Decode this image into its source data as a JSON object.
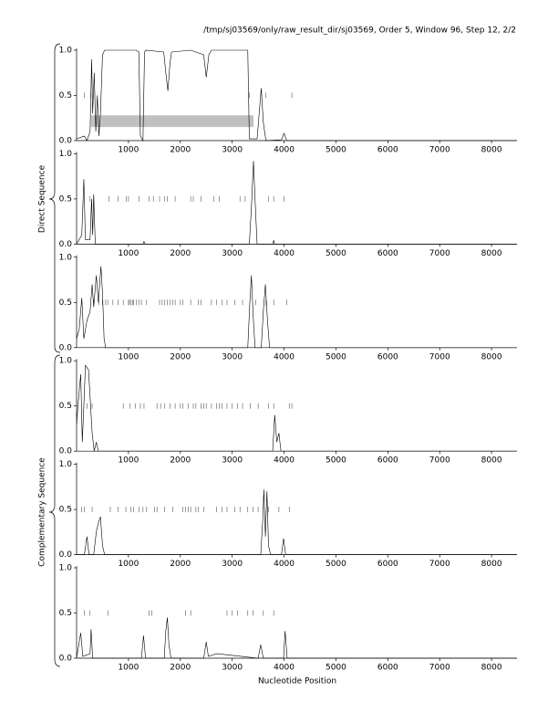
{
  "header": {
    "title": "/tmp/sj03569/only/raw_result_dir/sj03569, Order 5, Window 96, Step 12, 2/2"
  },
  "groups": [
    "Direct Sequence",
    "Complementary Sequence"
  ],
  "x_label": "Nucleotide Position",
  "chart_data": [
    {
      "type": "line",
      "color": "#000000",
      "x": [
        0,
        150,
        200,
        260,
        290,
        310,
        340,
        370,
        400,
        430,
        460,
        500,
        540,
        1150,
        1200,
        1230,
        1280,
        1310,
        1340,
        1680,
        1720,
        1760,
        1800,
        1830,
        2200,
        2450,
        2500,
        2550,
        2600,
        3300,
        3330,
        3480,
        3520,
        3560,
        3600,
        3650,
        3950,
        4000,
        4050,
        8490
      ],
      "values": [
        0.02,
        0.05,
        0,
        0.1,
        0.9,
        0.3,
        0.75,
        0.1,
        0.5,
        0.05,
        0.3,
        0.95,
        1,
        1,
        0.98,
        0.05,
        0,
        0.98,
        1,
        0.98,
        0.75,
        0.55,
        0.85,
        0.98,
        1,
        0.95,
        0.7,
        0.95,
        1,
        1,
        0.02,
        0.02,
        0.3,
        0.58,
        0.2,
        0,
        0.01,
        0.08,
        0,
        0
      ],
      "markers": [
        150,
        280,
        3330,
        3650,
        4150
      ],
      "marker_y": 0.5,
      "regions": [
        {
          "start": 280,
          "end": 3410,
          "low": 0.15,
          "high": 0.28
        }
      ],
      "region_color": "#c0c0c0",
      "xlim": [
        0,
        8490
      ],
      "ylim": [
        0,
        1
      ],
      "xticks": [
        1000,
        2000,
        3000,
        4000,
        5000,
        6000,
        7000,
        8000
      ],
      "yticks": [
        {
          "value": 0,
          "label": "0.0"
        },
        {
          "value": 0.5,
          "label": "0.5"
        },
        {
          "value": 1,
          "label": "1.0"
        }
      ]
    },
    {
      "type": "line",
      "color": "#000000",
      "x": [
        0,
        100,
        140,
        170,
        260,
        290,
        310,
        330,
        360,
        1280,
        1300,
        1320,
        3330,
        3370,
        3410,
        3440,
        3480,
        3780,
        3800,
        3820,
        8490
      ],
      "values": [
        0,
        0.1,
        0.72,
        0.05,
        0.05,
        0.5,
        0.1,
        0.55,
        0,
        0,
        0.03,
        0,
        0,
        0.4,
        0.92,
        0.5,
        0,
        0,
        0.04,
        0,
        0
      ],
      "markers": [
        260,
        330,
        620,
        800,
        960,
        1000,
        1200,
        1400,
        1480,
        1600,
        1700,
        1750,
        1900,
        2200,
        2250,
        2400,
        2650,
        2750,
        3150,
        3250,
        3700,
        3800,
        4000
      ],
      "marker_y": 0.5,
      "xlim": [
        0,
        8490
      ],
      "ylim": [
        0,
        1
      ],
      "xticks": [
        1000,
        2000,
        3000,
        4000,
        5000,
        6000,
        7000,
        8000
      ],
      "yticks": [
        {
          "value": 0,
          "label": "0.0"
        },
        {
          "value": 0.5,
          "label": "0.5"
        },
        {
          "value": 1,
          "label": "1.0"
        }
      ]
    },
    {
      "type": "line",
      "color": "#000000",
      "x": [
        0,
        50,
        100,
        140,
        200,
        260,
        300,
        330,
        380,
        420,
        470,
        500,
        530,
        560,
        3300,
        3340,
        3370,
        3400,
        3440,
        3560,
        3600,
        3640,
        3680,
        3720,
        8490
      ],
      "values": [
        0.1,
        0.2,
        0.55,
        0.1,
        0.3,
        0.4,
        0.7,
        0.45,
        0.8,
        0.5,
        0.9,
        0.6,
        0.1,
        0,
        0,
        0.5,
        0.8,
        0.4,
        0,
        0,
        0.4,
        0.7,
        0.3,
        0,
        0
      ],
      "markers": [
        330,
        430,
        500,
        560,
        600,
        700,
        800,
        900,
        1000,
        1020,
        1050,
        1080,
        1100,
        1150,
        1200,
        1250,
        1350,
        1600,
        1650,
        1700,
        1750,
        1800,
        1850,
        1900,
        2000,
        2050,
        2200,
        2350,
        2400,
        2600,
        2700,
        2800,
        2900,
        3050,
        3200,
        3450,
        3650,
        3800,
        4050
      ],
      "marker_y": 0.5,
      "xlim": [
        0,
        8490
      ],
      "ylim": [
        0,
        1
      ],
      "xticks": [
        1000,
        2000,
        3000,
        4000,
        5000,
        6000,
        7000,
        8000
      ],
      "yticks": [
        {
          "value": 0,
          "label": "0.0"
        },
        {
          "value": 0.5,
          "label": "0.5"
        },
        {
          "value": 1,
          "label": "1.0"
        }
      ]
    },
    {
      "type": "line",
      "color": "#000000",
      "x": [
        0,
        40,
        80,
        110,
        140,
        170,
        230,
        270,
        300,
        340,
        380,
        420,
        3780,
        3820,
        3860,
        3900,
        3940,
        8490
      ],
      "values": [
        0.3,
        0.6,
        0.85,
        0.1,
        0.5,
        0.95,
        0.9,
        0.5,
        0.2,
        0,
        0.1,
        0,
        0,
        0.4,
        0.1,
        0.2,
        0,
        0
      ],
      "markers": [
        200,
        300,
        900,
        1030,
        1130,
        1230,
        1300,
        1550,
        1620,
        1700,
        1800,
        1900,
        2000,
        2050,
        2150,
        2250,
        2300,
        2400,
        2450,
        2500,
        2600,
        2700,
        2750,
        2800,
        2900,
        3000,
        3100,
        3200,
        3350,
        3500,
        3700,
        3800,
        4100,
        4150
      ],
      "marker_y": 0.5,
      "xlim": [
        0,
        8490
      ],
      "ylim": [
        0,
        1
      ],
      "xticks": [
        1000,
        2000,
        3000,
        4000,
        5000,
        6000,
        7000,
        8000
      ],
      "yticks": [
        {
          "value": 0,
          "label": "0.0"
        },
        {
          "value": 0.5,
          "label": "0.5"
        },
        {
          "value": 1,
          "label": "1.0"
        }
      ]
    },
    {
      "type": "line",
      "color": "#000000",
      "x": [
        0,
        150,
        200,
        240,
        330,
        380,
        420,
        460,
        500,
        540,
        3550,
        3590,
        3610,
        3640,
        3670,
        3700,
        3740,
        3950,
        3990,
        4030,
        8490
      ],
      "values": [
        0,
        0,
        0.2,
        0,
        0,
        0.25,
        0.35,
        0.42,
        0.1,
        0,
        0,
        0.4,
        0.72,
        0.2,
        0.7,
        0.1,
        0,
        0,
        0.18,
        0,
        0
      ],
      "markers": [
        100,
        150,
        300,
        650,
        800,
        950,
        1050,
        1100,
        1200,
        1280,
        1350,
        1500,
        1550,
        1700,
        1850,
        2050,
        2100,
        2150,
        2200,
        2300,
        2350,
        2450,
        2700,
        2800,
        2900,
        3050,
        3150,
        3300,
        3400,
        3500,
        3700,
        3900,
        4100
      ],
      "marker_y": 0.5,
      "xlim": [
        0,
        8490
      ],
      "ylim": [
        0,
        1
      ],
      "xticks": [
        1000,
        2000,
        3000,
        4000,
        5000,
        6000,
        7000,
        8000
      ],
      "yticks": [
        {
          "value": 0,
          "label": "0.0"
        },
        {
          "value": 0.5,
          "label": "0.5"
        },
        {
          "value": 1,
          "label": "1.0"
        }
      ]
    },
    {
      "type": "line",
      "color": "#000000",
      "x": [
        0,
        80,
        120,
        260,
        280,
        310,
        1250,
        1290,
        1330,
        1690,
        1720,
        1750,
        1780,
        1820,
        2450,
        2500,
        2540,
        2700,
        3500,
        3550,
        3600,
        3990,
        4020,
        4060,
        8490
      ],
      "values": [
        0,
        0.28,
        0.02,
        0.05,
        0.32,
        0,
        0,
        0.25,
        0,
        0,
        0.3,
        0.45,
        0.15,
        0,
        0,
        0.18,
        0.02,
        0.05,
        0,
        0.15,
        0,
        0,
        0.3,
        0,
        0
      ],
      "markers": [
        150,
        250,
        610,
        1400,
        1450,
        2100,
        2200,
        2900,
        3000,
        3100,
        3300,
        3400,
        3600,
        3800
      ],
      "marker_y": 0.5,
      "xlim": [
        0,
        8490
      ],
      "ylim": [
        0,
        1
      ],
      "xticks": [
        1000,
        2000,
        3000,
        4000,
        5000,
        6000,
        7000,
        8000
      ],
      "yticks": [
        {
          "value": 0,
          "label": "0.0"
        },
        {
          "value": 0.5,
          "label": "0.5"
        },
        {
          "value": 1,
          "label": "1.0"
        }
      ]
    }
  ]
}
